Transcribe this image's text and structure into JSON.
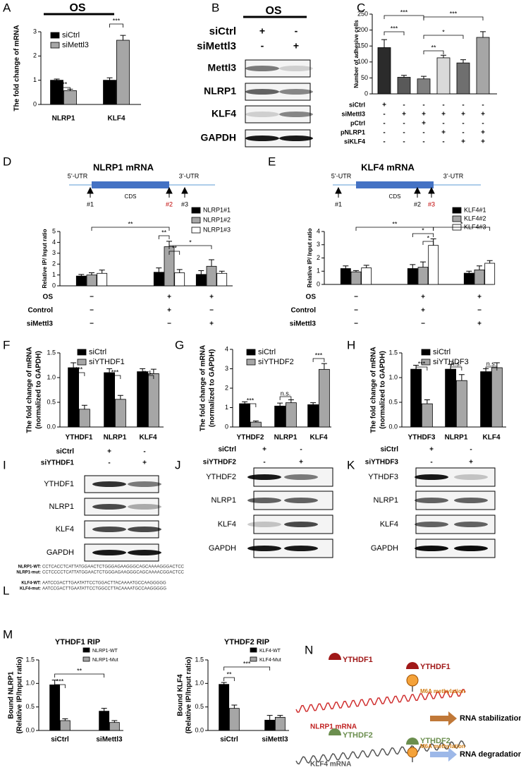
{
  "panel_labels": [
    "A",
    "B",
    "C",
    "D",
    "E",
    "F",
    "G",
    "H",
    "I",
    "J",
    "K",
    "L",
    "M",
    "N"
  ],
  "chart_data": [
    {
      "type": "bar",
      "title": "OS",
      "ylabel": [
        "The  fold change of mRNA"
      ],
      "categories": [
        "NLRP1",
        "KLF4"
      ],
      "series": [
        {
          "name": "siCtrl",
          "color": "#000000",
          "values": [
            1.0,
            1.0
          ],
          "errors": [
            0.05,
            0.1
          ]
        },
        {
          "name": "siMettl3",
          "color": "#a6a6a6",
          "values": [
            0.57,
            2.65
          ],
          "errors": [
            0.06,
            0.2
          ]
        }
      ],
      "ylim": [
        0,
        3
      ],
      "yticks": [
        0,
        1,
        2,
        3
      ],
      "annotations": [
        "***",
        "***"
      ]
    },
    {
      "type": "bar",
      "ylabel": [
        "Number of adhesive cells"
      ],
      "values": [
        145,
        52,
        47,
        113,
        97,
        177
      ],
      "errors": [
        25,
        6,
        8,
        8,
        10,
        18
      ],
      "colors": [
        "#2b2b2b",
        "#595959",
        "#7f7f7f",
        "#d9d9d9",
        "#6f6f6f",
        "#a6a6a6"
      ],
      "ylim": [
        0,
        250
      ],
      "yticks": [
        0,
        50,
        100,
        150,
        200,
        250
      ],
      "annotations": [
        "***",
        "***",
        "**",
        "*",
        "***"
      ],
      "conditions": [
        {
          "label": "siCtrl",
          "signs": [
            "+",
            "-",
            "-",
            "-",
            "-",
            "-"
          ]
        },
        {
          "label": "siMettl3",
          "signs": [
            "-",
            "+",
            "+",
            "+",
            "+",
            "+"
          ]
        },
        {
          "label": "pCtrl",
          "signs": [
            "-",
            "-",
            "+",
            "-",
            "-",
            "-"
          ]
        },
        {
          "label": "pNLRP1",
          "signs": [
            "-",
            "-",
            "-",
            "+",
            "-",
            "+"
          ]
        },
        {
          "label": "siKLF4",
          "signs": [
            "-",
            "-",
            "-",
            "-",
            "+",
            "+"
          ]
        }
      ]
    },
    {
      "type": "bar",
      "diagram": {
        "title": "NLRP1 mRNA",
        "five_utr": "5’-UTR",
        "three_utr": "3’-UTR",
        "cds": "CDS",
        "sites": [
          "#1",
          "#2",
          "#3"
        ]
      },
      "ylabel": [
        "Relative IP/ Input ratio"
      ],
      "series": [
        {
          "name": "NLRP1#1",
          "color": "#000000",
          "values": [
            0.9,
            1.25,
            1.05
          ],
          "errors": [
            0.15,
            0.4,
            0.35
          ]
        },
        {
          "name": "NLRP1#2",
          "color": "#a6a6a6",
          "values": [
            1.0,
            3.6,
            1.8
          ],
          "errors": [
            0.2,
            0.5,
            0.6
          ]
        },
        {
          "name": "NLRP1#3",
          "color": "#ffffff",
          "values": [
            1.15,
            1.2,
            1.15
          ],
          "errors": [
            0.3,
            0.3,
            0.2
          ]
        }
      ],
      "ylim": [
        0,
        5
      ],
      "yticks": [
        0,
        1,
        2,
        3,
        4,
        5
      ],
      "annotations": [
        "**",
        "**",
        "**",
        "*"
      ],
      "conditions": [
        {
          "label": "OS",
          "signs": [
            "−",
            "+",
            "+"
          ]
        },
        {
          "label": "Control",
          "signs": [
            "−",
            "+",
            "−"
          ]
        },
        {
          "label": "siMettl3",
          "signs": [
            "−",
            "−",
            "+"
          ]
        }
      ]
    },
    {
      "type": "bar",
      "diagram": {
        "title": "KLF4 mRNA",
        "five_utr": "5’-UTR",
        "three_utr": "3’-UTR",
        "cds": "CDS",
        "sites": [
          "#1",
          "#2",
          "#3"
        ]
      },
      "ylabel": [
        "Relative IP/ Input ratio"
      ],
      "series": [
        {
          "name": "KLF4#1",
          "color": "#000000",
          "values": [
            1.2,
            1.2,
            0.85
          ],
          "errors": [
            0.2,
            0.3,
            0.15
          ]
        },
        {
          "name": "KLF4#2",
          "color": "#a6a6a6",
          "values": [
            0.95,
            1.3,
            1.1
          ],
          "errors": [
            0.1,
            0.4,
            0.3
          ]
        },
        {
          "name": "KLF4#3",
          "color": "#ffffff",
          "values": [
            1.25,
            2.95,
            1.6
          ],
          "errors": [
            0.2,
            0.5,
            0.2
          ]
        }
      ],
      "ylim": [
        0,
        4
      ],
      "yticks": [
        0,
        1,
        2,
        3,
        4
      ],
      "annotations": [
        "**",
        "*",
        "*",
        "*"
      ],
      "conditions": [
        {
          "label": "OS",
          "signs": [
            "−",
            "+",
            "+"
          ]
        },
        {
          "label": "Control",
          "signs": [
            "−",
            "+",
            "−"
          ]
        },
        {
          "label": "siMettl3",
          "signs": [
            "−",
            "−",
            "+"
          ]
        }
      ]
    },
    {
      "type": "bar",
      "ylabel": [
        "The fold change of mRNA",
        "(normalized to GAPDH)"
      ],
      "categories": [
        "YTHDF1",
        "NLRP1",
        "KLF4"
      ],
      "series": [
        {
          "name": "siCtrl",
          "color": "#000000",
          "values": [
            1.2,
            1.1,
            1.12
          ],
          "errors": [
            0.1,
            0.08,
            0.06
          ]
        },
        {
          "name": "siYTHDF1",
          "color": "#a6a6a6",
          "values": [
            0.36,
            0.56,
            1.08
          ],
          "errors": [
            0.08,
            0.08,
            0.09
          ]
        }
      ],
      "ylim": [
        0,
        1.5
      ],
      "yticks": [
        {
          "value": 0,
          "label": "0.0"
        },
        0.5,
        {
          "value": 1,
          "label": "1.0"
        },
        1.5
      ],
      "annotations": [
        "***",
        "***",
        "n.s."
      ]
    },
    {
      "type": "bar",
      "ylabel": [
        "The fold change of mRNA",
        "(normalized to GAPDH)"
      ],
      "categories": [
        "YTHDF2",
        "NLRP1",
        "KLF4"
      ],
      "series": [
        {
          "name": "siCtrl",
          "color": "#000000",
          "values": [
            1.2,
            1.08,
            1.15
          ],
          "errors": [
            0.1,
            0.15,
            0.1
          ]
        },
        {
          "name": "siYTHDF2",
          "color": "#a6a6a6",
          "values": [
            0.25,
            1.25,
            2.97
          ],
          "errors": [
            0.06,
            0.15,
            0.3
          ]
        }
      ],
      "ylim": [
        0,
        4
      ],
      "yticks": [
        0,
        1,
        2,
        3,
        4
      ],
      "annotations": [
        "***",
        "n.s.",
        "***"
      ]
    },
    {
      "type": "bar",
      "ylabel": [
        "The fold change of mRNA",
        "(normalized to GAPDH)"
      ],
      "categories": [
        "YTHDF3",
        "NLRP1",
        "KLF4"
      ],
      "series": [
        {
          "name": "siCtrl",
          "color": "#000000",
          "values": [
            1.17,
            1.17,
            1.12
          ],
          "errors": [
            0.08,
            0.1,
            0.06
          ]
        },
        {
          "name": "siYTHDF3",
          "color": "#a6a6a6",
          "values": [
            0.47,
            0.94,
            1.2
          ],
          "errors": [
            0.08,
            0.12,
            0.1
          ]
        }
      ],
      "ylim": [
        0,
        1.5
      ],
      "yticks": [
        {
          "value": 0,
          "label": "0.0"
        },
        0.5,
        {
          "value": 1,
          "label": "1.0"
        },
        1.5
      ],
      "annotations": [
        "***",
        "n.s.",
        "n.s."
      ]
    },
    {
      "type": "bar",
      "title": "YTHDF1 RIP",
      "ylabel": [
        "Bound NLRP1",
        "(Relative IP/Input ratio)"
      ],
      "categories": [
        "siCtrl",
        "siMettl3"
      ],
      "series": [
        {
          "name": "NLRP1-WT",
          "color": "#000000",
          "values": [
            0.97,
            0.41
          ],
          "errors": [
            0.1,
            0.06
          ]
        },
        {
          "name": "NLRP1-Mut",
          "color": "#a6a6a6",
          "values": [
            0.21,
            0.17
          ],
          "errors": [
            0.04,
            0.04
          ]
        }
      ],
      "ylim": [
        0,
        1.5
      ],
      "yticks": [
        {
          "value": 0,
          "label": "0.0"
        },
        0.5,
        {
          "value": 1,
          "label": "1.0"
        },
        1.5
      ],
      "annotations": [
        "***",
        "**"
      ]
    },
    {
      "type": "bar",
      "title": "YTHDF2 RIP",
      "ylabel": [
        "Bound KLF4",
        "(Relative IP/Input ratio)"
      ],
      "categories": [
        "siCtrl",
        "siMettl3"
      ],
      "series": [
        {
          "name": "KLF4-WT",
          "color": "#000000",
          "values": [
            0.98,
            0.22
          ],
          "errors": [
            0.04,
            0.1
          ]
        },
        {
          "name": "KLF4-Mut",
          "color": "#a6a6a6",
          "values": [
            0.47,
            0.28
          ],
          "errors": [
            0.07,
            0.04
          ]
        }
      ],
      "ylim": [
        0,
        1.5
      ],
      "yticks": [
        {
          "value": 0,
          "label": "0.0"
        },
        0.5,
        {
          "value": 1,
          "label": "1.0"
        },
        1.5
      ],
      "annotations": [
        "**",
        "***"
      ]
    }
  ],
  "blots": [
    {
      "title": "OS",
      "conditions": [
        {
          "label": "siCtrl",
          "signs": [
            "+",
            "-"
          ]
        },
        {
          "label": "siMettl3",
          "signs": [
            "-",
            "+"
          ]
        }
      ],
      "rows": [
        "Mettl3",
        "NLRP1",
        "KLF4",
        "GAPDH"
      ]
    },
    {
      "conditions": [
        {
          "label": "siCtrl",
          "signs": [
            "+",
            "-"
          ]
        },
        {
          "label": "siYTHDF1",
          "signs": [
            "-",
            "+"
          ]
        }
      ],
      "rows": [
        "YTHDF1",
        "NLRP1",
        "KLF4",
        "GAPDH"
      ]
    },
    {
      "conditions": [
        {
          "label": "siCtrl",
          "signs": [
            "+",
            "-"
          ]
        },
        {
          "label": "siYTHDF2",
          "signs": [
            "-",
            "+"
          ]
        }
      ],
      "rows": [
        "YTHDF2",
        "NLRP1",
        "KLF4",
        "GAPDH"
      ]
    },
    {
      "conditions": [
        {
          "label": "siCtrl",
          "signs": [
            "+",
            "-"
          ]
        },
        {
          "label": "siYTHDF3",
          "signs": [
            "-",
            "+"
          ]
        }
      ],
      "rows": [
        "YTHDF3",
        "NLRP1",
        "KLF4",
        "GAPDH"
      ]
    }
  ],
  "sequences": [
    {
      "label": "NLRP1-WT:",
      "seq": "CCTCACCTCATTATGGAACTCTGGGAGAAGGGCAGCAAAAGGGACTCC"
    },
    {
      "label": "NLRP1-mut:",
      "seq": "CCTCCCCTCATTATGGAACTCTGGGAGAAGGGCAGCAAAACGGACTCC"
    },
    {
      "label": "KLF4-WT:",
      "seq": "AATCCGACTTGAATATTCCTGGACTTACAAAATGCCAAGGGGG"
    },
    {
      "label": "KLF4-mut:",
      "seq": "AATCCGACTTGAATATTCCTGGCCTTACAAAATGCCAAGGGGG"
    }
  ],
  "schematic": {
    "reader1_free": "YTHDF1",
    "reader1_bound": "YTHDF1",
    "methylation1": "M6A methylation",
    "outcome1": "RNA stabilization",
    "mrna1": "NLRP1 mRNA",
    "reader2_free": "YTHDF2",
    "reader2_bound": "YTHDF2",
    "methylation2": "M6A methylation",
    "outcome2": "RNA degradation",
    "mrna2": "KLF4 mRNA"
  }
}
